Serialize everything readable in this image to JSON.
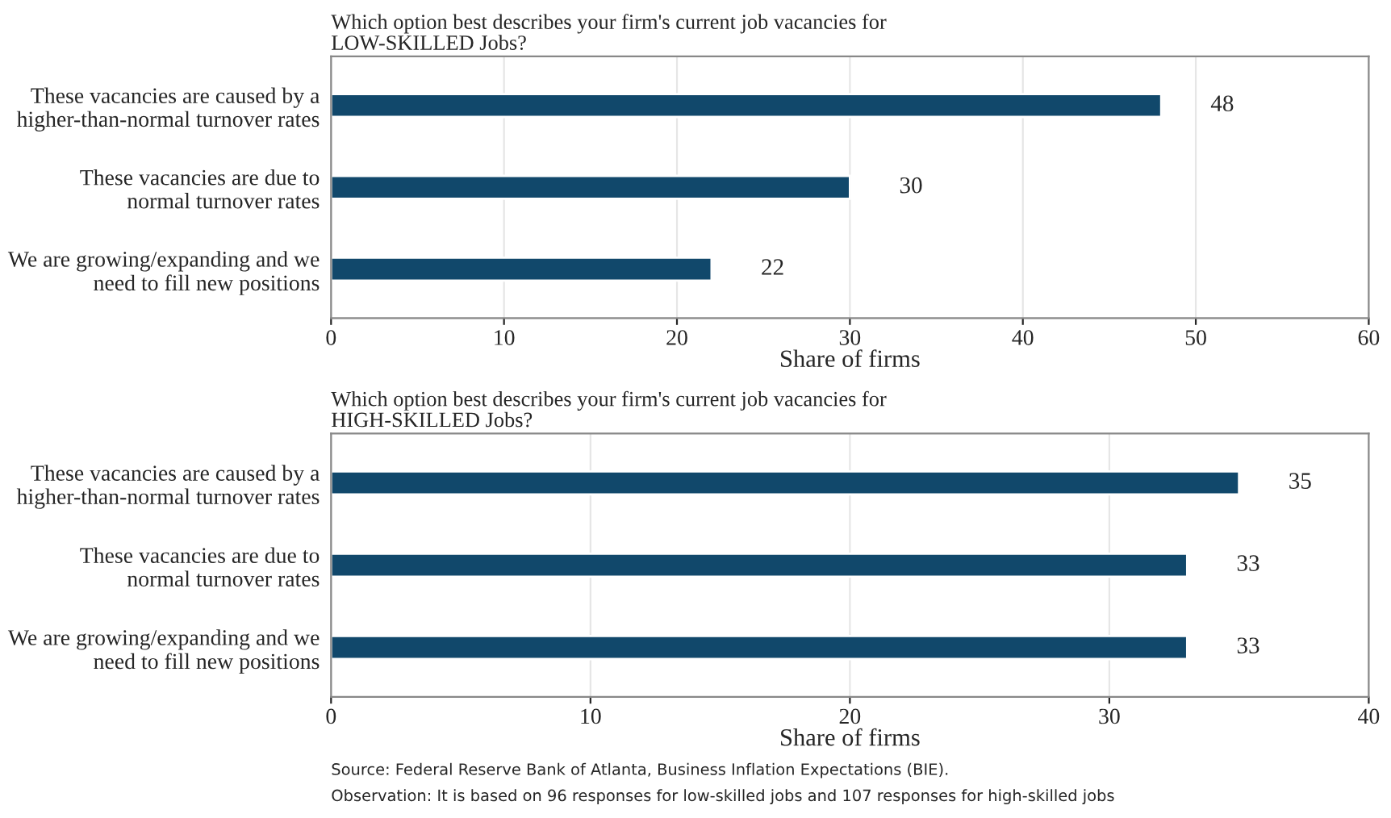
{
  "chart_data": [
    {
      "type": "bar",
      "orientation": "horizontal",
      "title": "Which option best describes your firm's current job vacancies for\nLOW-SKILLED Jobs?",
      "xlabel": "Share of firms",
      "categories": [
        "These vacancies are caused by a\nhigher-than-normal turnover rates",
        "These vacancies are due to\nnormal turnover rates",
        "We are growing/expanding and we\nneed to fill new positions"
      ],
      "values": [
        48,
        30,
        22
      ],
      "color": "#11486b",
      "xlim": [
        0,
        60
      ],
      "xticks": [
        0,
        10,
        20,
        30,
        40,
        50,
        60
      ],
      "grid": "x",
      "data_labels": true
    },
    {
      "type": "bar",
      "orientation": "horizontal",
      "title": "Which option best describes your firm's current job vacancies for\nHIGH-SKILLED Jobs?",
      "xlabel": "Share of firms",
      "categories": [
        "These vacancies are caused by a\nhigher-than-normal turnover rates",
        "These vacancies are due to\nnormal turnover rates",
        "We are growing/expanding and we\nneed to fill new positions"
      ],
      "values": [
        35,
        33,
        33
      ],
      "color": "#11486b",
      "xlim": [
        0,
        40
      ],
      "xticks": [
        0,
        10,
        20,
        30,
        40
      ],
      "grid": "x",
      "data_labels": true,
      "annotations": [
        "Source: Federal Reserve Bank of Atlanta, Business Inflation Expectations (BIE).",
        "Observation: It is based on 96 responses for low-skilled jobs and 107 responses for high-skilled jobs"
      ]
    }
  ]
}
